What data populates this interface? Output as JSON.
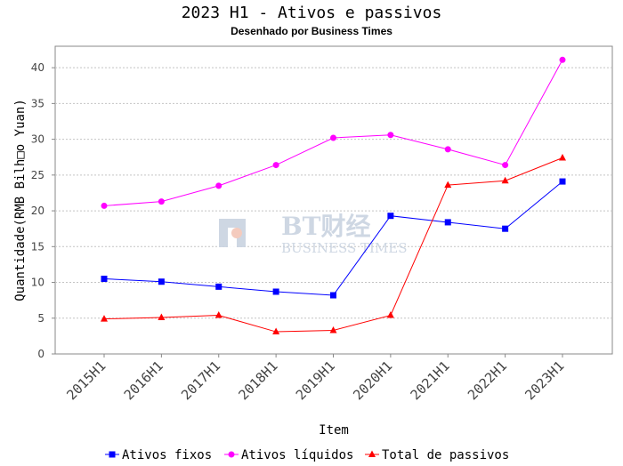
{
  "chart_data": {
    "type": "line",
    "title": "2023 H1 - Ativos e passivos",
    "subtitle": "Desenhado por Business Times",
    "xlabel": "Item",
    "ylabel": "Quantidade(RMB Bilh□o Yuan)",
    "ylim": [
      0,
      43
    ],
    "yticks": [
      0,
      5,
      10,
      15,
      20,
      25,
      30,
      35,
      40
    ],
    "grid": true,
    "legend_position": "bottom",
    "categories": [
      "2015H1",
      "2016H1",
      "2017H1",
      "2018H1",
      "2019H1",
      "2020H1",
      "2021H1",
      "2022H1",
      "2023H1"
    ],
    "series": [
      {
        "name": "Ativos fixos",
        "color": "#0000ff",
        "marker": "square",
        "values": [
          10.5,
          10.1,
          9.4,
          8.7,
          8.2,
          19.3,
          18.4,
          17.5,
          24.1
        ]
      },
      {
        "name": "Ativos líquidos",
        "color": "#ff00ff",
        "marker": "circle",
        "values": [
          20.7,
          21.3,
          23.5,
          26.4,
          30.2,
          30.6,
          28.6,
          26.4,
          41.1
        ]
      },
      {
        "name": "Total de passivos",
        "color": "#ff0000",
        "marker": "triangle",
        "values": [
          4.9,
          5.1,
          5.4,
          3.1,
          3.3,
          5.4,
          23.6,
          24.2,
          27.4
        ]
      }
    ]
  },
  "watermark": {
    "logo_text": "BT财经",
    "sub_text": "BUSINESS TIMES",
    "color": "#c9d3e0"
  }
}
